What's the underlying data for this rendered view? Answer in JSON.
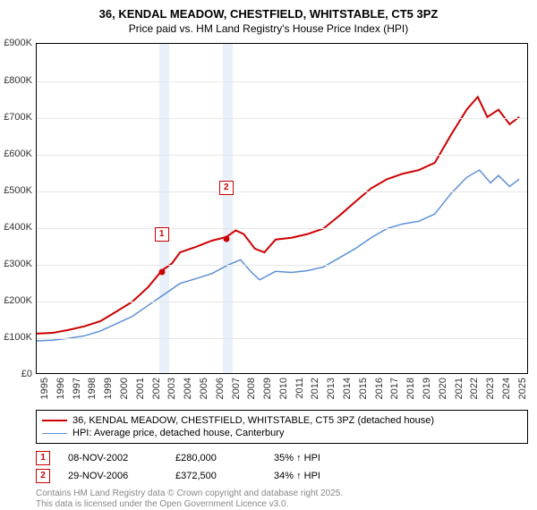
{
  "title": {
    "line1": "36, KENDAL MEADOW, CHESTFIELD, WHITSTABLE, CT5 3PZ",
    "line2": "Price paid vs. HM Land Registry's House Price Index (HPI)"
  },
  "chart": {
    "type": "line",
    "background_color": "#ffffff",
    "grid_color": "#e6e6e6",
    "axis_color": "#000000",
    "ylim": [
      0,
      900
    ],
    "ytick_step": 100,
    "ytick_prefix": "£",
    "ytick_suffix": "K",
    "x_years": [
      1995,
      1996,
      1997,
      1998,
      1999,
      2000,
      2001,
      2002,
      2003,
      2004,
      2005,
      2006,
      2007,
      2008,
      2009,
      2010,
      2011,
      2012,
      2013,
      2014,
      2015,
      2016,
      2017,
      2018,
      2019,
      2020,
      2021,
      2022,
      2023,
      2024,
      2025
    ],
    "xlim": [
      1995,
      2025.8
    ],
    "highlight_bands": [
      {
        "start": 2002.7,
        "end": 2003.3,
        "color": "#e8f0fa"
      },
      {
        "start": 2006.7,
        "end": 2007.3,
        "color": "#e8f0fa"
      }
    ],
    "series": [
      {
        "name": "price_paid",
        "label": "36, KENDAL MEADOW, CHESTFIELD, WHITSTABLE, CT5 3PZ (detached house)",
        "color": "#cc0000",
        "width": 2,
        "points": [
          [
            1995,
            108
          ],
          [
            1996,
            110
          ],
          [
            1997,
            118
          ],
          [
            1998,
            128
          ],
          [
            1999,
            142
          ],
          [
            2000,
            168
          ],
          [
            2001,
            195
          ],
          [
            2002,
            235
          ],
          [
            2002.85,
            280
          ],
          [
            2003.5,
            300
          ],
          [
            2004,
            330
          ],
          [
            2005,
            345
          ],
          [
            2006,
            362
          ],
          [
            2006.9,
            372
          ],
          [
            2007.5,
            390
          ],
          [
            2008,
            380
          ],
          [
            2008.7,
            340
          ],
          [
            2009.3,
            330
          ],
          [
            2010,
            365
          ],
          [
            2011,
            370
          ],
          [
            2012,
            380
          ],
          [
            2013,
            395
          ],
          [
            2014,
            430
          ],
          [
            2015,
            468
          ],
          [
            2016,
            505
          ],
          [
            2017,
            530
          ],
          [
            2018,
            545
          ],
          [
            2019,
            555
          ],
          [
            2020,
            575
          ],
          [
            2021,
            650
          ],
          [
            2022,
            720
          ],
          [
            2022.7,
            755
          ],
          [
            2023.3,
            700
          ],
          [
            2024,
            720
          ],
          [
            2024.7,
            680
          ],
          [
            2025.3,
            700
          ]
        ]
      },
      {
        "name": "hpi",
        "label": "HPI: Average price, detached house, Canterbury",
        "color": "#5b8fd6",
        "width": 1.5,
        "points": [
          [
            1995,
            88
          ],
          [
            1996,
            90
          ],
          [
            1997,
            95
          ],
          [
            1998,
            102
          ],
          [
            1999,
            115
          ],
          [
            2000,
            135
          ],
          [
            2001,
            155
          ],
          [
            2002,
            185
          ],
          [
            2003,
            215
          ],
          [
            2004,
            245
          ],
          [
            2005,
            258
          ],
          [
            2006,
            272
          ],
          [
            2007,
            295
          ],
          [
            2007.8,
            310
          ],
          [
            2008.5,
            275
          ],
          [
            2009,
            255
          ],
          [
            2010,
            278
          ],
          [
            2011,
            275
          ],
          [
            2012,
            280
          ],
          [
            2013,
            290
          ],
          [
            2014,
            315
          ],
          [
            2015,
            340
          ],
          [
            2016,
            370
          ],
          [
            2017,
            395
          ],
          [
            2018,
            408
          ],
          [
            2019,
            415
          ],
          [
            2020,
            435
          ],
          [
            2021,
            490
          ],
          [
            2022,
            535
          ],
          [
            2022.8,
            555
          ],
          [
            2023.5,
            520
          ],
          [
            2024,
            540
          ],
          [
            2024.7,
            510
          ],
          [
            2025.3,
            530
          ]
        ]
      }
    ],
    "sale_markers": [
      {
        "num": "1",
        "x": 2002.85,
        "y": 280,
        "box_offset_y": -50
      },
      {
        "num": "2",
        "x": 2006.9,
        "y": 372,
        "box_offset_y": -65
      }
    ]
  },
  "legend": {
    "items": [
      {
        "color": "#cc0000",
        "width": 2,
        "label_key": "chart.series.0.label"
      },
      {
        "color": "#5b8fd6",
        "width": 1.5,
        "label_key": "chart.series.1.label"
      }
    ]
  },
  "sales": [
    {
      "num": "1",
      "date": "08-NOV-2002",
      "price": "£280,000",
      "delta": "35% ↑ HPI"
    },
    {
      "num": "2",
      "date": "29-NOV-2006",
      "price": "£372,500",
      "delta": "34% ↑ HPI"
    }
  ],
  "footer": {
    "line1": "Contains HM Land Registry data © Crown copyright and database right 2025.",
    "line2": "This data is licensed under the Open Government Licence v3.0."
  }
}
